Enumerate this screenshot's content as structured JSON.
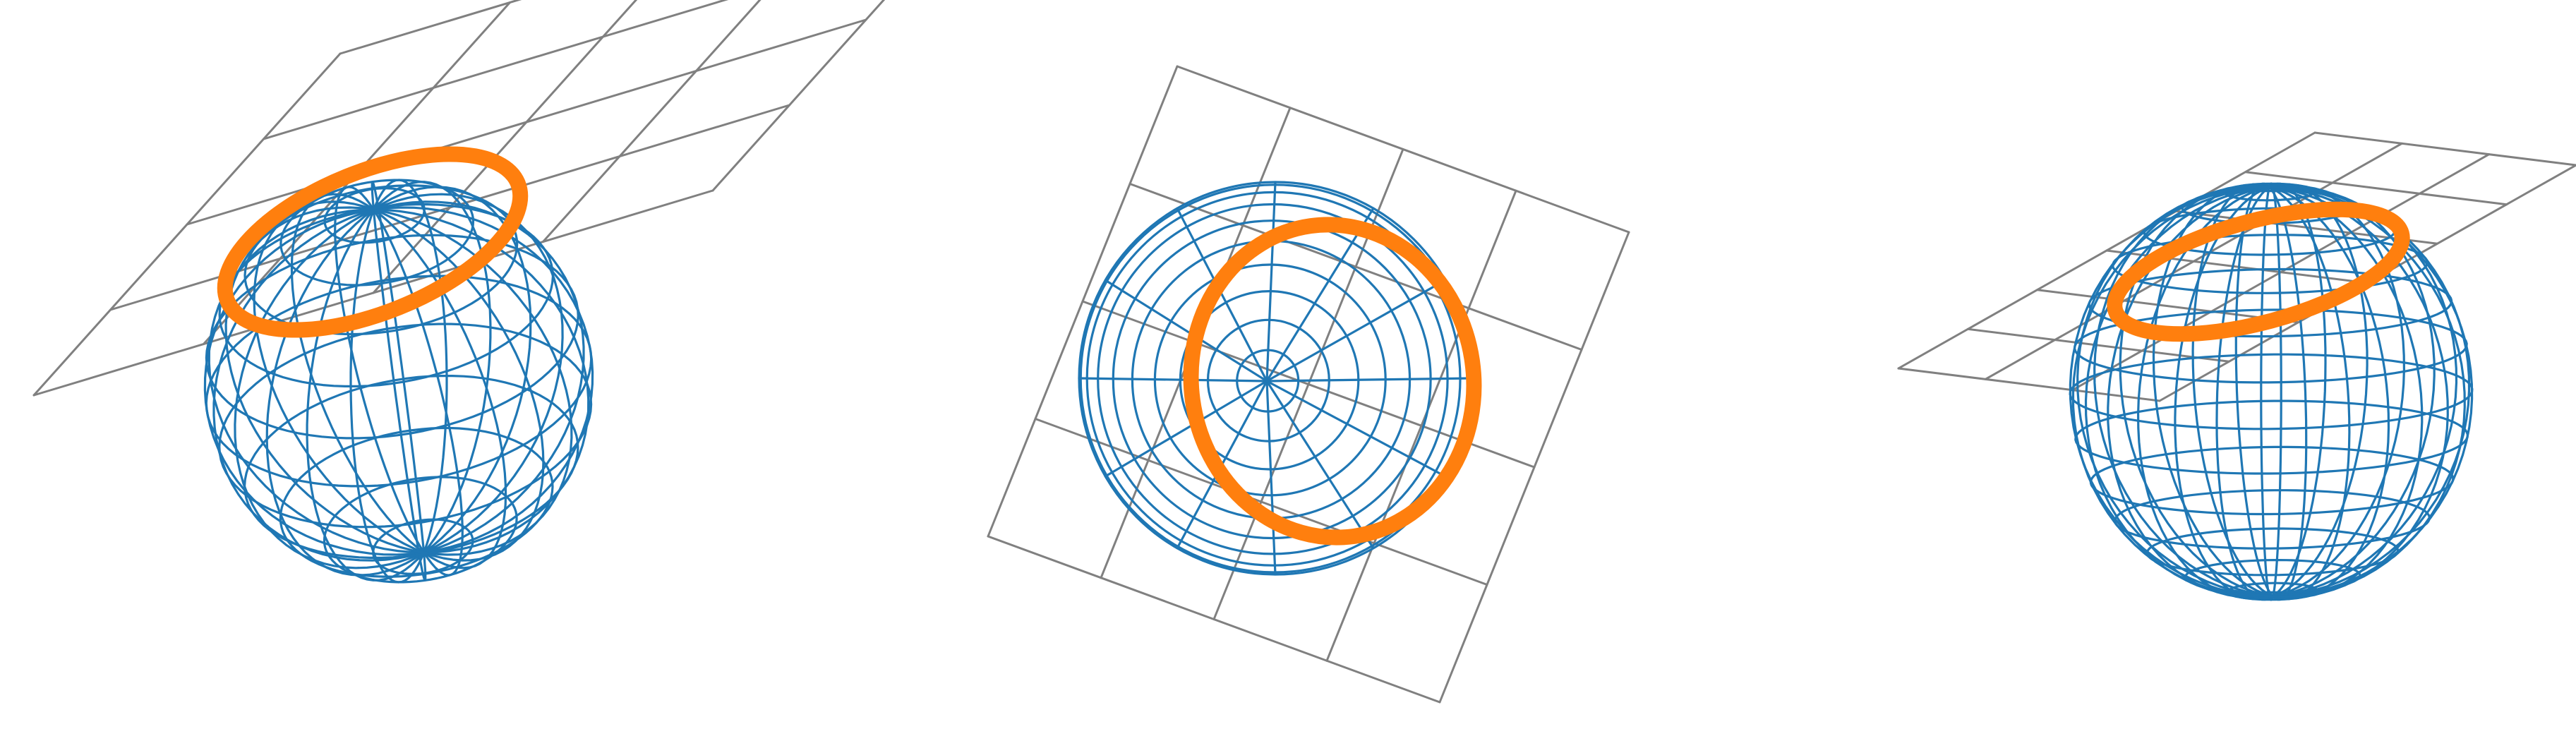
{
  "colors": {
    "background": "#ffffff",
    "sphere_wireframe": "#1f77b4",
    "plane_grid": "#808080",
    "intersection_circle": "#ff7f0e"
  },
  "panels": [
    {
      "id": "view-1",
      "view": "oblique",
      "sphere": "wireframe-sphere",
      "plane": "tangent-grid-plane",
      "highlight": "orange-intersection-circle"
    },
    {
      "id": "view-2",
      "view": "near-top-down",
      "sphere": "wireframe-sphere",
      "plane": "tangent-grid-plane",
      "highlight": "orange-intersection-circle"
    },
    {
      "id": "view-3",
      "view": "low-oblique",
      "sphere": "wireframe-sphere",
      "plane": "tangent-grid-plane",
      "highlight": "orange-intersection-circle"
    }
  ]
}
